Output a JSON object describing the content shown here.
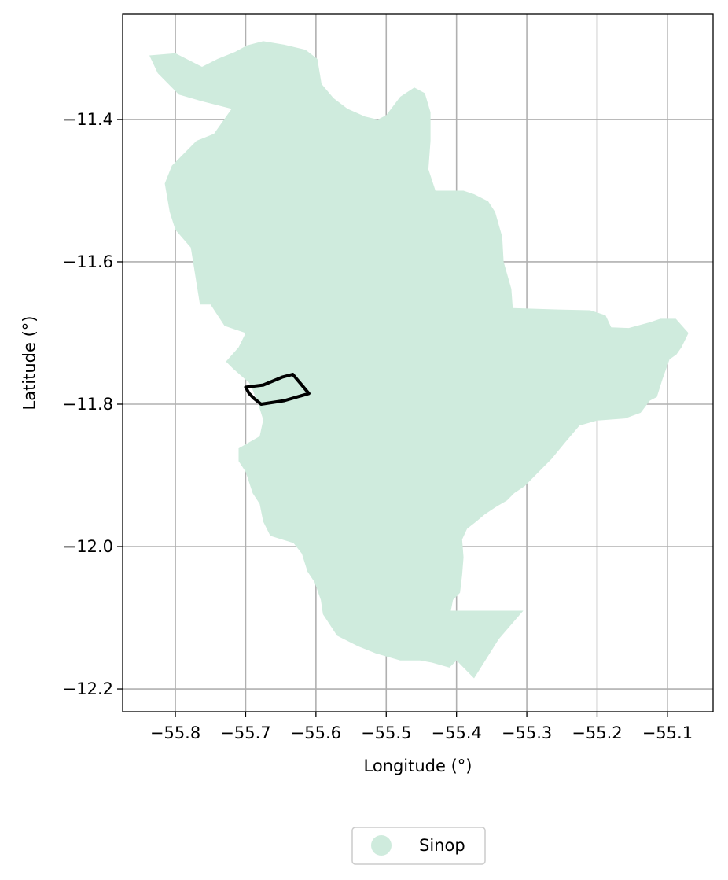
{
  "chart_data": {
    "type": "map",
    "title": "",
    "xlabel": "Longitude (°)",
    "ylabel": "Latitude (°)",
    "xlim": [
      -55.875,
      -55.035
    ],
    "ylim": [
      -12.232,
      -11.252
    ],
    "x_ticks": [
      -55.8,
      -55.7,
      -55.6,
      -55.5,
      -55.4,
      -55.3,
      -55.2,
      -55.1
    ],
    "x_tick_labels": [
      "−55.8",
      "−55.7",
      "−55.6",
      "−55.5",
      "−55.4",
      "−55.3",
      "−55.2",
      "−55.1"
    ],
    "y_ticks": [
      -11.4,
      -11.6,
      -11.8,
      -12.0,
      -12.2
    ],
    "y_tick_labels": [
      "−11.4",
      "−11.6",
      "−11.8",
      "−12.0",
      "−12.2"
    ],
    "grid": true,
    "legend": {
      "placement": "bottom-center",
      "entries": [
        {
          "name": "Sinop",
          "color": "#cfebdd"
        }
      ]
    },
    "region": {
      "name": "Sinop",
      "color": "#cfebdd",
      "outline": [
        [
          -55.837,
          -11.31
        ],
        [
          -55.8,
          -11.307
        ],
        [
          -55.762,
          -11.326
        ],
        [
          -55.74,
          -11.315
        ],
        [
          -55.715,
          -11.305
        ],
        [
          -55.698,
          -11.296
        ],
        [
          -55.675,
          -11.29
        ],
        [
          -55.645,
          -11.295
        ],
        [
          -55.615,
          -11.302
        ],
        [
          -55.598,
          -11.315
        ],
        [
          -55.592,
          -11.35
        ],
        [
          -55.575,
          -11.37
        ],
        [
          -55.555,
          -11.385
        ],
        [
          -55.53,
          -11.396
        ],
        [
          -55.512,
          -11.4
        ],
        [
          -55.5,
          -11.394
        ],
        [
          -55.48,
          -11.368
        ],
        [
          -55.46,
          -11.355
        ],
        [
          -55.445,
          -11.363
        ],
        [
          -55.437,
          -11.39
        ],
        [
          -55.437,
          -11.43
        ],
        [
          -55.44,
          -11.47
        ],
        [
          -55.43,
          -11.5
        ],
        [
          -55.41,
          -11.5
        ],
        [
          -55.39,
          -11.5
        ],
        [
          -55.375,
          -11.505
        ],
        [
          -55.355,
          -11.515
        ],
        [
          -55.345,
          -11.53
        ],
        [
          -55.335,
          -11.565
        ],
        [
          -55.333,
          -11.6
        ],
        [
          -55.322,
          -11.638
        ],
        [
          -55.32,
          -11.665
        ],
        [
          -55.255,
          -11.667
        ],
        [
          -55.21,
          -11.668
        ],
        [
          -55.188,
          -11.675
        ],
        [
          -55.18,
          -11.692
        ],
        [
          -55.155,
          -11.693
        ],
        [
          -55.125,
          -11.685
        ],
        [
          -55.11,
          -11.68
        ],
        [
          -55.088,
          -11.68
        ],
        [
          -55.07,
          -11.7
        ],
        [
          -55.08,
          -11.72
        ],
        [
          -55.087,
          -11.73
        ],
        [
          -55.097,
          -11.737
        ],
        [
          -55.107,
          -11.765
        ],
        [
          -55.115,
          -11.79
        ],
        [
          -55.125,
          -11.795
        ],
        [
          -55.138,
          -11.812
        ],
        [
          -55.16,
          -11.82
        ],
        [
          -55.2,
          -11.823
        ],
        [
          -55.225,
          -11.83
        ],
        [
          -55.245,
          -11.853
        ],
        [
          -55.265,
          -11.877
        ],
        [
          -55.285,
          -11.897
        ],
        [
          -55.303,
          -11.915
        ],
        [
          -55.318,
          -11.925
        ],
        [
          -55.328,
          -11.935
        ],
        [
          -55.345,
          -11.945
        ],
        [
          -55.36,
          -11.955
        ],
        [
          -55.372,
          -11.965
        ],
        [
          -55.385,
          -11.975
        ],
        [
          -55.392,
          -11.99
        ],
        [
          -55.39,
          -12.015
        ],
        [
          -55.392,
          -12.04
        ],
        [
          -55.395,
          -12.065
        ],
        [
          -55.405,
          -12.075
        ],
        [
          -55.408,
          -12.09
        ],
        [
          -55.305,
          -12.09
        ],
        [
          -55.34,
          -12.13
        ],
        [
          -55.375,
          -12.185
        ],
        [
          -55.39,
          -12.17
        ],
        [
          -55.4,
          -12.16
        ],
        [
          -55.41,
          -12.17
        ],
        [
          -55.435,
          -12.163
        ],
        [
          -55.452,
          -12.16
        ],
        [
          -55.48,
          -12.16
        ],
        [
          -55.515,
          -12.15
        ],
        [
          -55.54,
          -12.14
        ],
        [
          -55.57,
          -12.125
        ],
        [
          -55.59,
          -12.095
        ],
        [
          -55.593,
          -12.075
        ],
        [
          -55.602,
          -12.05
        ],
        [
          -55.612,
          -12.035
        ],
        [
          -55.62,
          -12.01
        ],
        [
          -55.632,
          -11.995
        ],
        [
          -55.665,
          -11.985
        ],
        [
          -55.675,
          -11.965
        ],
        [
          -55.68,
          -11.94
        ],
        [
          -55.69,
          -11.925
        ],
        [
          -55.7,
          -11.895
        ],
        [
          -55.71,
          -11.88
        ],
        [
          -55.71,
          -11.862
        ],
        [
          -55.68,
          -11.845
        ],
        [
          -55.675,
          -11.822
        ],
        [
          -55.682,
          -11.8
        ],
        [
          -55.69,
          -11.78
        ],
        [
          -55.695,
          -11.77
        ],
        [
          -55.718,
          -11.75
        ],
        [
          -55.728,
          -11.74
        ],
        [
          -55.71,
          -11.72
        ],
        [
          -55.7,
          -11.7
        ],
        [
          -55.73,
          -11.69
        ],
        [
          -55.75,
          -11.66
        ],
        [
          -55.765,
          -11.66
        ],
        [
          -55.778,
          -11.58
        ],
        [
          -55.8,
          -11.555
        ],
        [
          -55.808,
          -11.53
        ],
        [
          -55.815,
          -11.49
        ],
        [
          -55.805,
          -11.465
        ],
        [
          -55.77,
          -11.43
        ],
        [
          -55.745,
          -11.42
        ],
        [
          -55.72,
          -11.385
        ],
        [
          -55.76,
          -11.375
        ],
        [
          -55.795,
          -11.365
        ],
        [
          -55.825,
          -11.335
        ]
      ]
    },
    "overlay": {
      "color": "#000000",
      "outline": [
        [
          -55.7,
          -11.776
        ],
        [
          -55.675,
          -11.773
        ],
        [
          -55.648,
          -11.762
        ],
        [
          -55.633,
          -11.758
        ],
        [
          -55.61,
          -11.785
        ],
        [
          -55.645,
          -11.795
        ],
        [
          -55.678,
          -11.8
        ],
        [
          -55.688,
          -11.792
        ],
        [
          -55.695,
          -11.785
        ]
      ]
    }
  }
}
